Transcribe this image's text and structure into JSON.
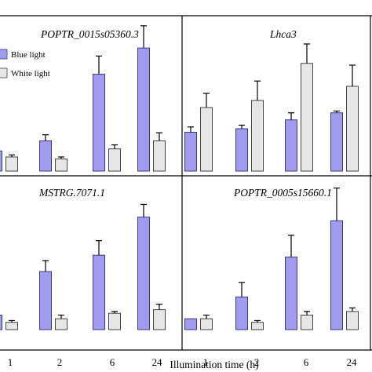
{
  "colors": {
    "blue_fill": "#9f9cf0",
    "blue_stroke": "#3c3c7c",
    "white_fill": "#e6e6e6",
    "white_stroke": "#444444"
  },
  "legend": {
    "placement": "top-left of first panel",
    "blue_label": "Blue light",
    "white_label": "White light"
  },
  "xlabel": "Illumination time (h)",
  "chart_data": [
    {
      "type": "bar",
      "title": "POPTR_0015s05360.3",
      "categories": [
        "1",
        "2",
        "6",
        "24"
      ],
      "series": [
        {
          "name": "Blue light",
          "values": [
            1.0,
            1.5,
            4.8,
            6.1
          ],
          "errors": [
            0.1,
            0.3,
            0.9,
            1.1
          ]
        },
        {
          "name": "White light",
          "values": [
            0.7,
            0.6,
            1.1,
            1.5
          ],
          "errors": [
            0.1,
            0.1,
            0.2,
            0.4
          ]
        }
      ],
      "ylim": [
        0,
        7
      ]
    },
    {
      "type": "bar",
      "title": "Lhca3",
      "categories": [
        "1",
        "2",
        "6",
        "24"
      ],
      "series": [
        {
          "name": "Blue light",
          "values": [
            2.2,
            2.4,
            2.9,
            3.3
          ],
          "errors": [
            0.3,
            0.2,
            0.4,
            0.1
          ]
        },
        {
          "name": "White light",
          "values": [
            3.6,
            4.0,
            6.1,
            4.8
          ],
          "errors": [
            0.8,
            1.1,
            1.1,
            1.2
          ]
        }
      ],
      "ylim": [
        0,
        8
      ]
    },
    {
      "type": "bar",
      "title": "MSTRG.7071.1",
      "categories": [
        "1",
        "2",
        "6",
        "24"
      ],
      "series": [
        {
          "name": "Blue light",
          "values": [
            0.8,
            3.2,
            4.1,
            6.2
          ],
          "errors": [
            0.3,
            0.6,
            0.8,
            0.7
          ]
        },
        {
          "name": "White light",
          "values": [
            0.4,
            0.6,
            0.9,
            1.1
          ],
          "errors": [
            0.1,
            0.2,
            0.1,
            0.3
          ]
        }
      ],
      "ylim": [
        0,
        8
      ]
    },
    {
      "type": "bar",
      "title": "POPTR_0005s15660.1",
      "categories": [
        "1",
        "2",
        "6",
        "24"
      ],
      "series": [
        {
          "name": "Blue light",
          "values": [
            0.3,
            0.9,
            2.0,
            3.0
          ],
          "errors": [
            0.0,
            0.4,
            0.6,
            0.9
          ]
        },
        {
          "name": "White light",
          "values": [
            0.3,
            0.2,
            0.4,
            0.5
          ],
          "errors": [
            0.1,
            0.05,
            0.1,
            0.1
          ]
        }
      ],
      "ylim": [
        0,
        4
      ]
    }
  ]
}
